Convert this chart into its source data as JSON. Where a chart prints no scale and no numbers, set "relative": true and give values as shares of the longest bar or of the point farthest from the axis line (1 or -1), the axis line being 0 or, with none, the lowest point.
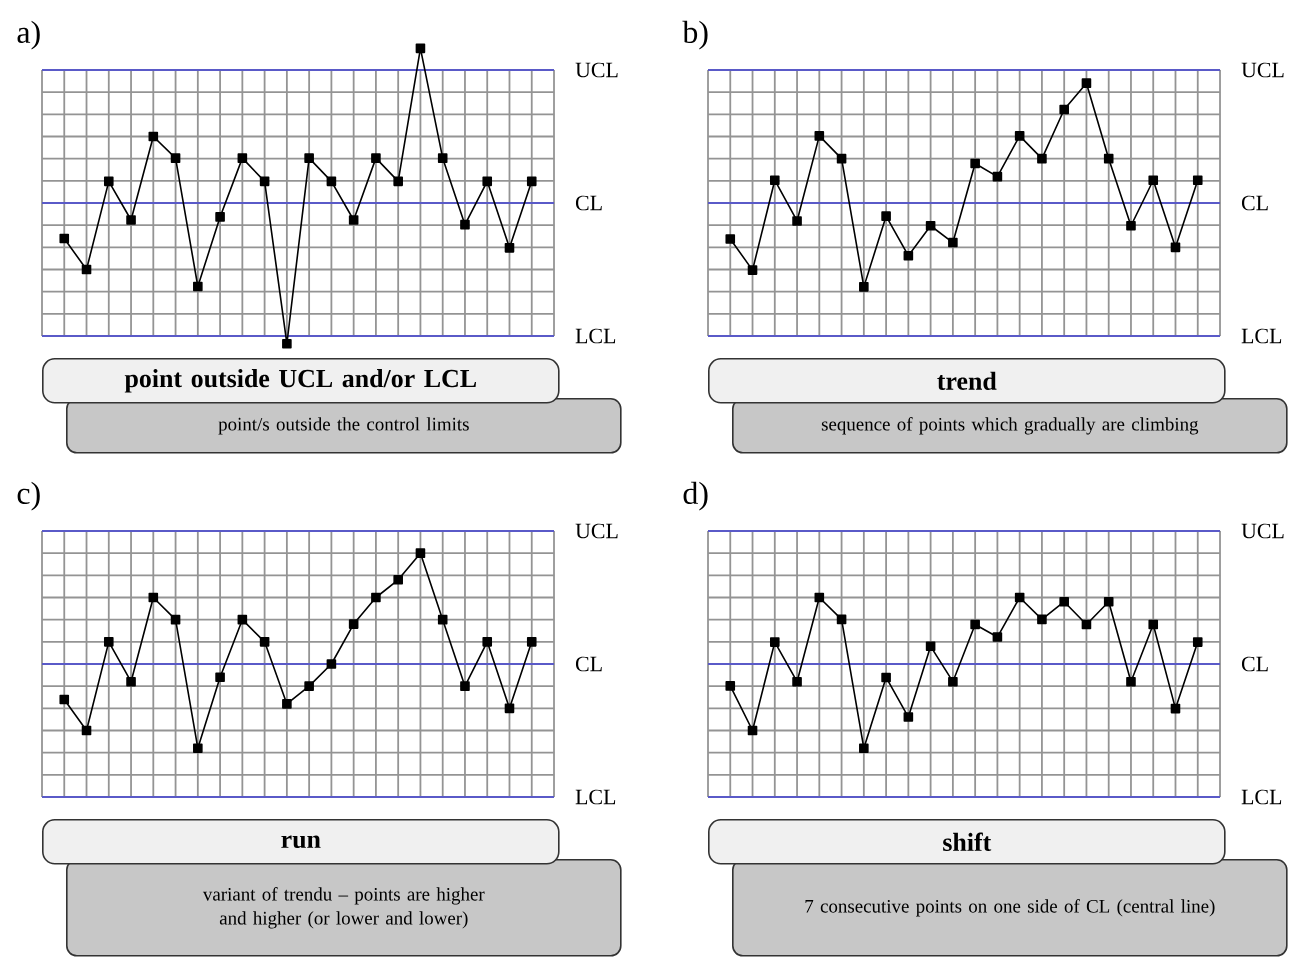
{
  "chart_data": [
    {
      "type": "line",
      "title": "a)",
      "relative": true,
      "categories": [
        null,
        null,
        null,
        null,
        null,
        null,
        null,
        null,
        null,
        null,
        null,
        null,
        null,
        null,
        null,
        null,
        null,
        null,
        null,
        null,
        null,
        null
      ],
      "values": [
        -0.23,
        -0.43,
        0.14,
        -0.11,
        0.43,
        0.29,
        -0.54,
        -0.09,
        0.29,
        0.14,
        -0.91,
        0.29,
        0.14,
        -0.11,
        0.29,
        0.14,
        1,
        0.29,
        -0.14,
        0.14,
        -0.29,
        0.14
      ],
      "color": "#000000",
      "marker": "square",
      "grid": true,
      "ref_lines": [
        {
          "axis": "y",
          "value": 0.86,
          "label": "UCL",
          "color": "#5a5ac8"
        },
        {
          "axis": "y",
          "value": 0,
          "label": "CL",
          "color": "#5a5ac8"
        },
        {
          "axis": "y",
          "value": -0.86,
          "label": "LCL",
          "color": "#5a5ac8"
        }
      ],
      "annotations": [
        "point outside UCL and/or LCL",
        "point/s outside the control limits"
      ]
    },
    {
      "type": "line",
      "title": "b)",
      "relative": true,
      "categories": [
        null,
        null,
        null,
        null,
        null,
        null,
        null,
        null,
        null,
        null,
        null,
        null,
        null,
        null,
        null,
        null,
        null,
        null,
        null,
        null,
        null,
        null
      ],
      "values": [
        -0.3,
        -0.56,
        0.19,
        -0.15,
        0.56,
        0.37,
        -0.7,
        -0.11,
        -0.44,
        -0.19,
        -0.33,
        0.33,
        0.22,
        0.56,
        0.37,
        0.78,
        1,
        0.37,
        -0.19,
        0.19,
        -0.37,
        0.19
      ],
      "color": "#000000",
      "marker": "square",
      "grid": true,
      "ref_lines": [
        {
          "axis": "y",
          "value": 1.11,
          "label": "UCL",
          "color": "#5a5ac8"
        },
        {
          "axis": "y",
          "value": 0,
          "label": "CL",
          "color": "#5a5ac8"
        },
        {
          "axis": "y",
          "value": -1.11,
          "label": "LCL",
          "color": "#5a5ac8"
        }
      ],
      "annotations": [
        "trend",
        "sequence of points which gradually are climbing"
      ]
    },
    {
      "type": "line",
      "title": "c)",
      "relative": true,
      "categories": [
        null,
        null,
        null,
        null,
        null,
        null,
        null,
        null,
        null,
        null,
        null,
        null,
        null,
        null,
        null,
        null,
        null,
        null,
        null,
        null,
        null,
        null
      ],
      "values": [
        -0.32,
        -0.6,
        0.2,
        -0.16,
        0.6,
        0.4,
        -0.76,
        -0.12,
        0.4,
        0.2,
        -0.36,
        -0.2,
        0,
        0.36,
        0.6,
        0.76,
        1,
        0.4,
        -0.2,
        0.2,
        -0.4,
        0.2
      ],
      "color": "#000000",
      "marker": "square",
      "grid": true,
      "ref_lines": [
        {
          "axis": "y",
          "value": 1.2,
          "label": "UCL",
          "color": "#5a5ac8"
        },
        {
          "axis": "y",
          "value": 0,
          "label": "CL",
          "color": "#5a5ac8"
        },
        {
          "axis": "y",
          "value": -1.2,
          "label": "LCL",
          "color": "#5a5ac8"
        }
      ],
      "annotations": [
        "run",
        "variant of trendu – points are higher and higher (or lower and lower)"
      ]
    },
    {
      "type": "line",
      "title": "d)",
      "relative": true,
      "categories": [
        null,
        null,
        null,
        null,
        null,
        null,
        null,
        null,
        null,
        null,
        null,
        null,
        null,
        null,
        null,
        null,
        null,
        null,
        null,
        null,
        null,
        null
      ],
      "values": [
        -0.26,
        -0.79,
        0.26,
        -0.21,
        0.79,
        0.53,
        -1,
        -0.16,
        -0.63,
        0.21,
        -0.21,
        0.47,
        0.32,
        0.79,
        0.53,
        0.74,
        0.47,
        0.74,
        -0.21,
        0.47,
        -0.53,
        0.26
      ],
      "color": "#000000",
      "marker": "square",
      "grid": true,
      "ref_lines": [
        {
          "axis": "y",
          "value": 1.58,
          "label": "UCL",
          "color": "#5a5ac8"
        },
        {
          "axis": "y",
          "value": 0,
          "label": "CL",
          "color": "#5a5ac8"
        },
        {
          "axis": "y",
          "value": -1.58,
          "label": "LCL",
          "color": "#5a5ac8"
        }
      ],
      "annotations": [
        "shift",
        "7 consecutive points on one side of CL (central line)"
      ]
    }
  ]
}
